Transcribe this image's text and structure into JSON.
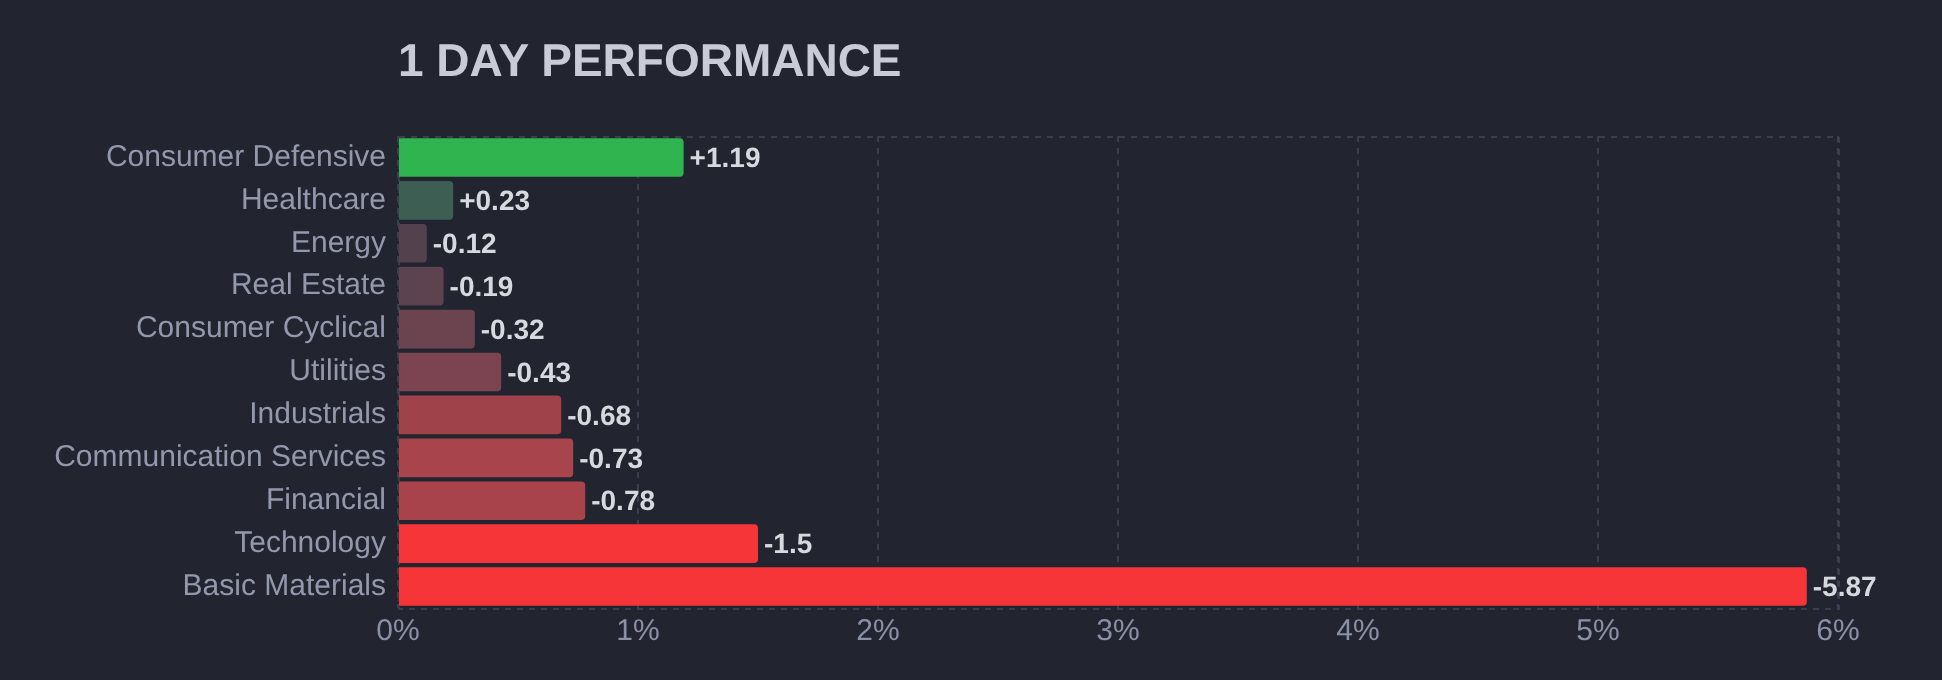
{
  "chart_data": {
    "type": "bar",
    "orientation": "horizontal",
    "title": "1 DAY PERFORMANCE",
    "categories": [
      "Consumer Defensive",
      "Healthcare",
      "Energy",
      "Real Estate",
      "Consumer Cyclical",
      "Utilities",
      "Industrials",
      "Communication Services",
      "Financial",
      "Technology",
      "Basic Materials"
    ],
    "values": [
      1.19,
      0.23,
      0.12,
      0.19,
      0.32,
      0.43,
      0.68,
      0.73,
      0.78,
      1.5,
      5.87
    ],
    "annotations": [
      {
        "text": "+1.19",
        "x": 1.19,
        "y": "Consumer Defensive"
      },
      {
        "text": "+0.23",
        "x": 0.23,
        "y": "Healthcare"
      },
      {
        "text": "-0.12",
        "x": 0.12,
        "y": "Energy"
      },
      {
        "text": "-0.19",
        "x": 0.19,
        "y": "Real Estate"
      },
      {
        "text": "-0.32",
        "x": 0.32,
        "y": "Consumer Cyclical"
      },
      {
        "text": "-0.43",
        "x": 0.43,
        "y": "Utilities"
      },
      {
        "text": "-0.68",
        "x": 0.68,
        "y": "Industrials"
      },
      {
        "text": "-0.73",
        "x": 0.73,
        "y": "Communication Services"
      },
      {
        "text": "-0.78",
        "x": 0.78,
        "y": "Financial"
      },
      {
        "text": "-1.5",
        "x": 1.5,
        "y": "Technology"
      },
      {
        "text": "-5.87",
        "x": 5.87,
        "y": "Basic Materials"
      }
    ],
    "colors": [
      "#30b44f",
      "#3d5e52",
      "#54414e",
      "#5c434f",
      "#6c4450",
      "#7b4450",
      "#a0424a",
      "#a8454c",
      "#a9434b",
      "#f63538",
      "#f63538"
    ],
    "xlim": [
      0,
      6
    ],
    "xticks": [
      {
        "value": 0,
        "label": "0%"
      },
      {
        "value": 1,
        "label": "1%"
      },
      {
        "value": 2,
        "label": "2%"
      },
      {
        "value": 3,
        "label": "3%"
      },
      {
        "value": 4,
        "label": "4%"
      },
      {
        "value": 5,
        "label": "5%"
      },
      {
        "value": 6,
        "label": "6%"
      }
    ],
    "grid": "x",
    "legend": false
  }
}
